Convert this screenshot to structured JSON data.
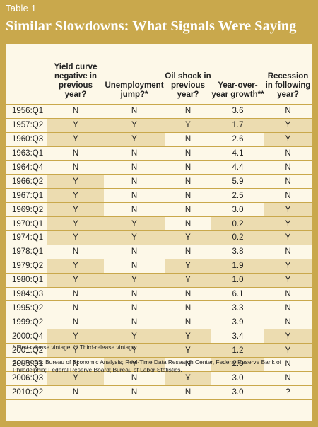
{
  "header": {
    "label": "Table 1",
    "title": "Similar Slowdowns: What Signals Were Saying"
  },
  "table": {
    "columns": [
      "",
      "Yield curve negative in previous year?",
      "Unemployment jump?*",
      "Oil shock in previous year?",
      "Year-over-year growth**",
      "Recession in following year?"
    ],
    "rows": [
      {
        "date": "1956:Q1",
        "cells": [
          "N",
          "N",
          "N",
          "3.6",
          "N"
        ],
        "hl": []
      },
      {
        "date": "1957:Q2",
        "cells": [
          "Y",
          "Y",
          "Y",
          "1.7",
          "Y"
        ],
        "hl": [
          0,
          1,
          2,
          3,
          4
        ]
      },
      {
        "date": "1960:Q3",
        "cells": [
          "Y",
          "Y",
          "N",
          "2.6",
          "Y"
        ],
        "hl": [
          0,
          1,
          4
        ]
      },
      {
        "date": "1963:Q1",
        "cells": [
          "N",
          "N",
          "N",
          "4.1",
          "N"
        ],
        "hl": []
      },
      {
        "date": "1964:Q4",
        "cells": [
          "N",
          "N",
          "N",
          "4.4",
          "N"
        ],
        "hl": []
      },
      {
        "date": "1966:Q2",
        "cells": [
          "Y",
          "N",
          "N",
          "5.9",
          "N"
        ],
        "hl": [
          0
        ]
      },
      {
        "date": "1967:Q1",
        "cells": [
          "Y",
          "N",
          "N",
          "2.5",
          "N"
        ],
        "hl": [
          0
        ]
      },
      {
        "date": "1969:Q2",
        "cells": [
          "Y",
          "N",
          "N",
          "3.0",
          "Y"
        ],
        "hl": [
          0,
          4
        ]
      },
      {
        "date": "1970:Q1",
        "cells": [
          "Y",
          "Y",
          "N",
          "0.2",
          "Y"
        ],
        "hl": [
          0,
          1,
          3,
          4
        ]
      },
      {
        "date": "1974:Q1",
        "cells": [
          "Y",
          "Y",
          "Y",
          "0.2",
          "Y"
        ],
        "hl": [
          0,
          1,
          2,
          3,
          4
        ]
      },
      {
        "date": "1978:Q1",
        "cells": [
          "N",
          "N",
          "N",
          "3.8",
          "N"
        ],
        "hl": []
      },
      {
        "date": "1979:Q2",
        "cells": [
          "Y",
          "N",
          "Y",
          "1.9",
          "Y"
        ],
        "hl": [
          0,
          2,
          3,
          4
        ]
      },
      {
        "date": "1980:Q1",
        "cells": [
          "Y",
          "Y",
          "Y",
          "1.0",
          "Y"
        ],
        "hl": [
          0,
          1,
          2,
          3,
          4
        ]
      },
      {
        "date": "1984:Q3",
        "cells": [
          "N",
          "N",
          "N",
          "6.1",
          "N"
        ],
        "hl": []
      },
      {
        "date": "1995:Q2",
        "cells": [
          "N",
          "N",
          "N",
          "3.3",
          "N"
        ],
        "hl": []
      },
      {
        "date": "1999:Q2",
        "cells": [
          "N",
          "N",
          "N",
          "3.9",
          "N"
        ],
        "hl": []
      },
      {
        "date": "2000:Q4",
        "cells": [
          "Y",
          "Y",
          "Y",
          "3.4",
          "Y"
        ],
        "hl": [
          0,
          1,
          2,
          4
        ]
      },
      {
        "date": "2001:Q2",
        "cells": [
          "Y",
          "Y",
          "Y",
          "1.2",
          "Y"
        ],
        "hl": [
          0,
          1,
          2,
          3,
          4
        ]
      },
      {
        "date": "2003:Q1",
        "cells": [
          "N",
          "Y",
          "N",
          "2.0",
          "N"
        ],
        "hl": [
          1,
          3
        ]
      },
      {
        "date": "2006:Q3",
        "cells": [
          "Y",
          "N",
          "Y",
          "3.0",
          "N"
        ],
        "hl": [
          0,
          2
        ]
      },
      {
        "date": "2010:Q2",
        "cells": [
          "N",
          "N",
          "N",
          "3.0",
          "?"
        ],
        "hl": []
      }
    ]
  },
  "notes": {
    "footnote": "* First-release vintage. ** Third-release vintage.",
    "sources": "SOURCES: Bureau of Economic Analysis; Real-Time Data Research Center, Federal Reserve Bank of Philadelphia; Federal Reserve Board; Bureau of Labor Statistics."
  }
}
